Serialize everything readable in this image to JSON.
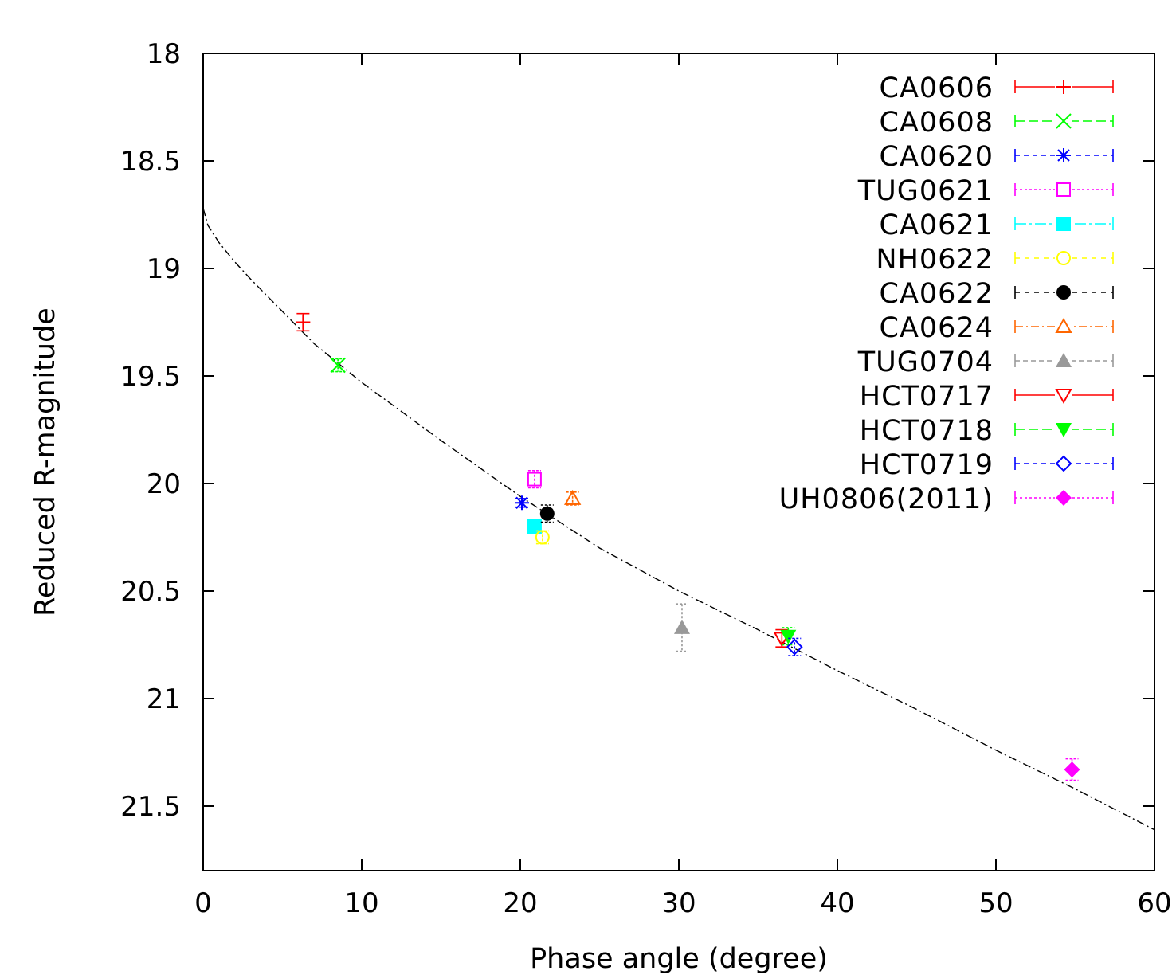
{
  "chart_data": {
    "type": "scatter",
    "title": "",
    "xlabel": "Phase angle (degree)",
    "ylabel": "Reduced R-magnitude",
    "xlim": [
      0,
      60
    ],
    "ylim": [
      18,
      21.8
    ],
    "y_inverted": true,
    "x_ticks": [
      0,
      10,
      20,
      30,
      40,
      50,
      60
    ],
    "x_tick_labels": [
      "0",
      "10",
      "20",
      "30",
      "40",
      "50",
      "60"
    ],
    "y_ticks": [
      18,
      18.5,
      19,
      19.5,
      20,
      20.5,
      21,
      21.5
    ],
    "y_tick_labels": [
      "18",
      "18.5",
      "19",
      "19.5",
      "20",
      "20.5",
      "21",
      "21.5"
    ],
    "grid": false,
    "legend_position": "top-right",
    "series": [
      {
        "name": "CA0606",
        "color": "#ff0000",
        "marker": "plus",
        "dash": "",
        "points": [
          {
            "x": 6.3,
            "y": 19.25,
            "err": 0.04
          }
        ]
      },
      {
        "name": "CA0608",
        "color": "#00ff00",
        "marker": "cross",
        "dash": "12,5",
        "points": [
          {
            "x": 8.5,
            "y": 19.45,
            "err": 0.03
          }
        ]
      },
      {
        "name": "CA0620",
        "color": "#0000ff",
        "marker": "asterisk",
        "dash": "6,5",
        "points": [
          {
            "x": 20.1,
            "y": 20.09,
            "err": 0.02
          }
        ]
      },
      {
        "name": "TUG0621",
        "color": "#ff00ff",
        "marker": "open-square",
        "dash": "3,3",
        "points": [
          {
            "x": 20.9,
            "y": 19.98,
            "err": 0.04
          }
        ]
      },
      {
        "name": "CA0621",
        "color": "#00ffff",
        "marker": "filled-square",
        "dash": "14,4,3,4",
        "points": [
          {
            "x": 20.9,
            "y": 20.2,
            "err": 0.02
          }
        ]
      },
      {
        "name": "NH0622",
        "color": "#ffff00",
        "marker": "open-circle",
        "dash": "6,6",
        "points": [
          {
            "x": 21.4,
            "y": 20.25,
            "err": 0.03
          }
        ]
      },
      {
        "name": "CA0622",
        "color": "#000000",
        "marker": "filled-circle",
        "dash": "6,6",
        "points": [
          {
            "x": 21.7,
            "y": 20.14,
            "err": 0.04
          }
        ]
      },
      {
        "name": "CA0624",
        "color": "#ff6600",
        "marker": "open-triangle",
        "dash": "10,4,2,4",
        "points": [
          {
            "x": 23.3,
            "y": 20.07,
            "err": 0.03
          }
        ]
      },
      {
        "name": "TUG0704",
        "color": "#999999",
        "marker": "filled-triangle",
        "dash": "6,4",
        "points": [
          {
            "x": 30.2,
            "y": 20.67,
            "err": 0.11
          }
        ]
      },
      {
        "name": "HCT0717",
        "color": "#ff0000",
        "marker": "open-inverted-triangle",
        "dash": "",
        "points": [
          {
            "x": 36.5,
            "y": 20.72,
            "err": 0.04
          }
        ]
      },
      {
        "name": "HCT0718",
        "color": "#00ff00",
        "marker": "filled-inverted-triangle",
        "dash": "12,5",
        "points": [
          {
            "x": 36.9,
            "y": 20.71,
            "err": 0.04
          }
        ]
      },
      {
        "name": "HCT0719",
        "color": "#0000ff",
        "marker": "open-diamond",
        "dash": "6,5",
        "points": [
          {
            "x": 37.3,
            "y": 20.76,
            "err": 0.04
          }
        ]
      },
      {
        "name": "UH0806(2011)",
        "color": "#ff00ff",
        "marker": "filled-diamond",
        "dash": "3,3",
        "points": [
          {
            "x": 54.8,
            "y": 21.33,
            "err": 0.05
          }
        ]
      }
    ],
    "fit_curve": {
      "color": "#000000",
      "dash": "10,4,2,4",
      "points": [
        [
          0,
          18.72
        ],
        [
          0.3,
          18.8
        ],
        [
          1,
          18.88
        ],
        [
          2,
          18.97
        ],
        [
          3,
          19.05
        ],
        [
          5,
          19.2
        ],
        [
          7,
          19.35
        ],
        [
          10,
          19.53
        ],
        [
          15,
          19.8
        ],
        [
          20,
          20.06
        ],
        [
          25,
          20.3
        ],
        [
          30,
          20.5
        ],
        [
          35,
          20.68
        ],
        [
          40,
          20.87
        ],
        [
          45,
          21.05
        ],
        [
          50,
          21.24
        ],
        [
          55,
          21.42
        ],
        [
          60,
          21.61
        ]
      ]
    }
  }
}
